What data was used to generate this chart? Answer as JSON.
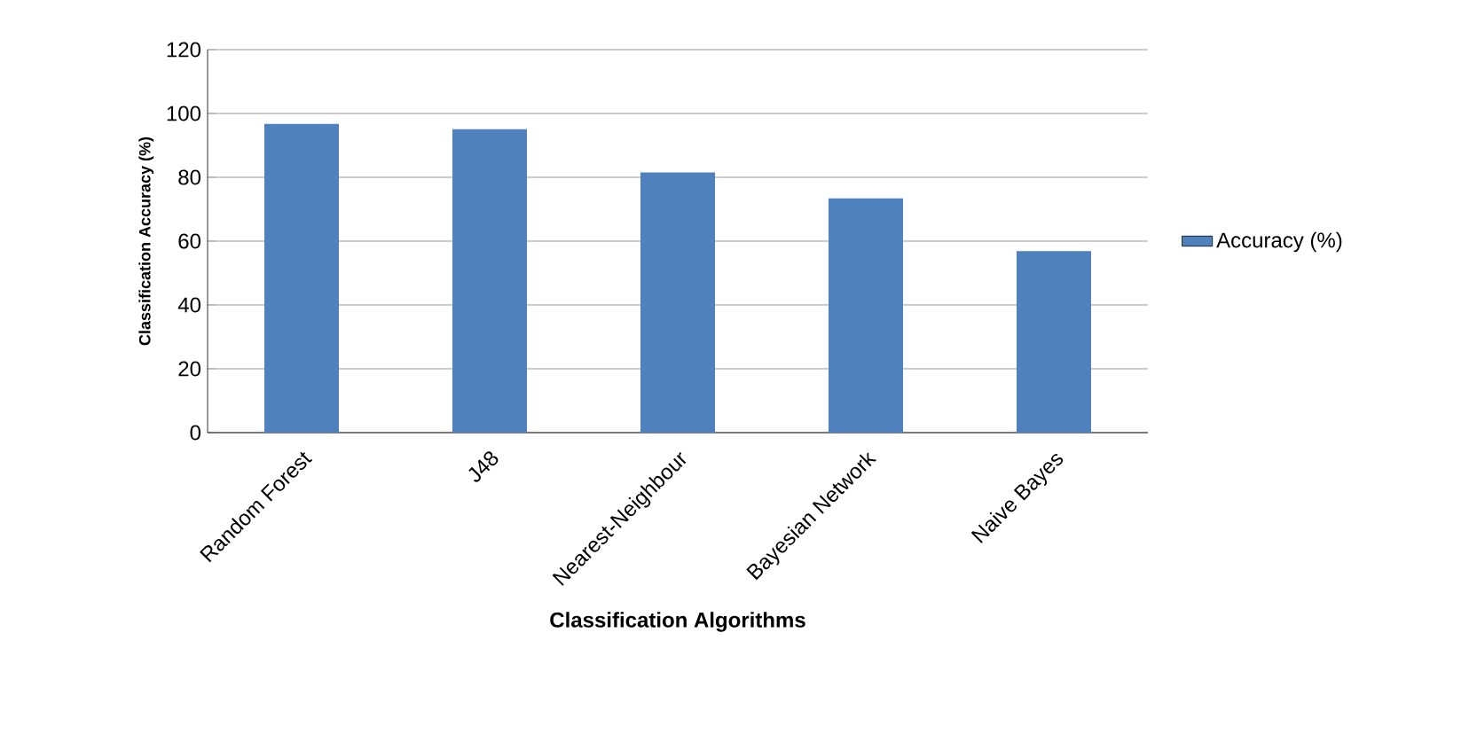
{
  "chart_data": {
    "type": "bar",
    "xlabel": "Classification  Algorithms",
    "ylabel": "Classification  Accuracy (%)",
    "categories": [
      "Random Forest",
      "J48",
      "Nearest-Neighbour",
      "Bayesian Network",
      "Naive Bayes"
    ],
    "series": [
      {
        "name": "Accuracy (%)",
        "color": "#4f81bd",
        "values": [
          96.7,
          95.1,
          81.5,
          73.4,
          56.9
        ]
      }
    ],
    "ylim": [
      0,
      120
    ],
    "yticks": [
      0,
      20,
      40,
      60,
      80,
      100,
      120
    ],
    "grid": "y",
    "legend": "right"
  }
}
